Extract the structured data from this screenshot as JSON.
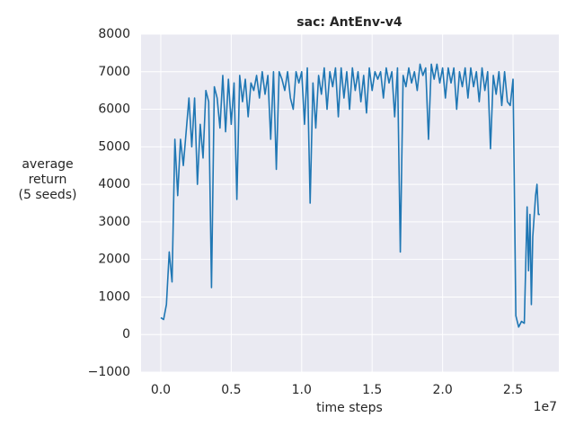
{
  "chart_data": {
    "type": "line",
    "title": "sac: AntEnv-v4",
    "xlabel": "time steps",
    "ylabel": [
      "average",
      "return",
      "(5 seeds)"
    ],
    "x_offset_label": "1e7",
    "x": [
      0,
      200000,
      400000,
      600000,
      800000,
      1000000,
      1200000,
      1400000,
      1600000,
      1800000,
      2000000,
      2200000,
      2400000,
      2600000,
      2800000,
      3000000,
      3200000,
      3400000,
      3600000,
      3800000,
      4000000,
      4200000,
      4400000,
      4600000,
      4800000,
      5000000,
      5200000,
      5400000,
      5600000,
      5800000,
      6000000,
      6200000,
      6400000,
      6600000,
      6800000,
      7000000,
      7200000,
      7400000,
      7600000,
      7800000,
      8000000,
      8200000,
      8400000,
      8600000,
      8800000,
      9000000,
      9200000,
      9400000,
      9600000,
      9800000,
      10000000,
      10200000,
      10400000,
      10600000,
      10800000,
      11000000,
      11200000,
      11400000,
      11600000,
      11800000,
      12000000,
      12200000,
      12400000,
      12600000,
      12800000,
      13000000,
      13200000,
      13400000,
      13600000,
      13800000,
      14000000,
      14200000,
      14400000,
      14600000,
      14800000,
      15000000,
      15200000,
      15400000,
      15600000,
      15800000,
      16000000,
      16200000,
      16400000,
      16600000,
      16800000,
      17000000,
      17200000,
      17400000,
      17600000,
      17800000,
      18000000,
      18200000,
      18400000,
      18600000,
      18800000,
      19000000,
      19200000,
      19400000,
      19600000,
      19800000,
      20000000,
      20200000,
      20400000,
      20600000,
      20800000,
      21000000,
      21200000,
      21400000,
      21600000,
      21800000,
      22000000,
      22200000,
      22400000,
      22600000,
      22800000,
      23000000,
      23200000,
      23400000,
      23600000,
      23800000,
      24000000,
      24200000,
      24400000,
      24600000,
      24800000,
      25000000,
      25200000,
      25400000,
      25600000,
      25800000,
      26000000,
      26100000,
      26200000,
      26300000,
      26400000,
      26600000,
      26700000,
      26800000,
      26900000
    ],
    "series": [
      {
        "name": "sac",
        "color": "#1f77b4",
        "values": [
          450,
          400,
          800,
          2200,
          1400,
          5200,
          3700,
          5200,
          4500,
          5400,
          6300,
          5000,
          6300,
          4000,
          5600,
          4700,
          6500,
          6200,
          1250,
          6600,
          6300,
          5500,
          6900,
          5400,
          6800,
          5600,
          6700,
          3600,
          6900,
          6200,
          6800,
          5800,
          6700,
          6500,
          6900,
          6300,
          7000,
          6400,
          6900,
          5200,
          7000,
          4400,
          7000,
          6800,
          6500,
          7000,
          6300,
          6000,
          7000,
          6700,
          7000,
          5600,
          7100,
          3500,
          6700,
          5500,
          6900,
          6400,
          7100,
          6000,
          7000,
          6600,
          7100,
          5800,
          7100,
          6300,
          7000,
          6000,
          7100,
          6500,
          7000,
          6200,
          6900,
          5900,
          7100,
          6500,
          7000,
          6800,
          7000,
          6300,
          7100,
          6700,
          7000,
          5800,
          7100,
          2200,
          6900,
          6600,
          7100,
          6700,
          7000,
          6500,
          7200,
          6900,
          7100,
          5200,
          7200,
          6800,
          7200,
          6700,
          7100,
          6300,
          7100,
          6700,
          7100,
          6000,
          7000,
          6600,
          7100,
          6300,
          7100,
          6600,
          7000,
          6200,
          7100,
          6500,
          7000,
          4950,
          6900,
          6400,
          7000,
          6100,
          7000,
          6200,
          6100,
          6800,
          500,
          200,
          350,
          300,
          3400,
          1700,
          3200,
          800,
          2600,
          3700,
          4000,
          3200,
          3200
        ]
      }
    ],
    "xlim": [
      -1400000,
      28250000
    ],
    "xticks": [
      {
        "value": 0,
        "label": "0.0"
      },
      {
        "value": 5000000,
        "label": "0.5"
      },
      {
        "value": 10000000,
        "label": "1.0"
      },
      {
        "value": 15000000,
        "label": "1.5"
      },
      {
        "value": 20000000,
        "label": "2.0"
      },
      {
        "value": 25000000,
        "label": "2.5"
      }
    ],
    "ylim": [
      -1000,
      8000
    ],
    "yticks": [
      {
        "value": -1000,
        "label": "−1000"
      },
      0,
      1000,
      2000,
      3000,
      4000,
      5000,
      6000,
      7000,
      8000
    ],
    "grid": true
  }
}
